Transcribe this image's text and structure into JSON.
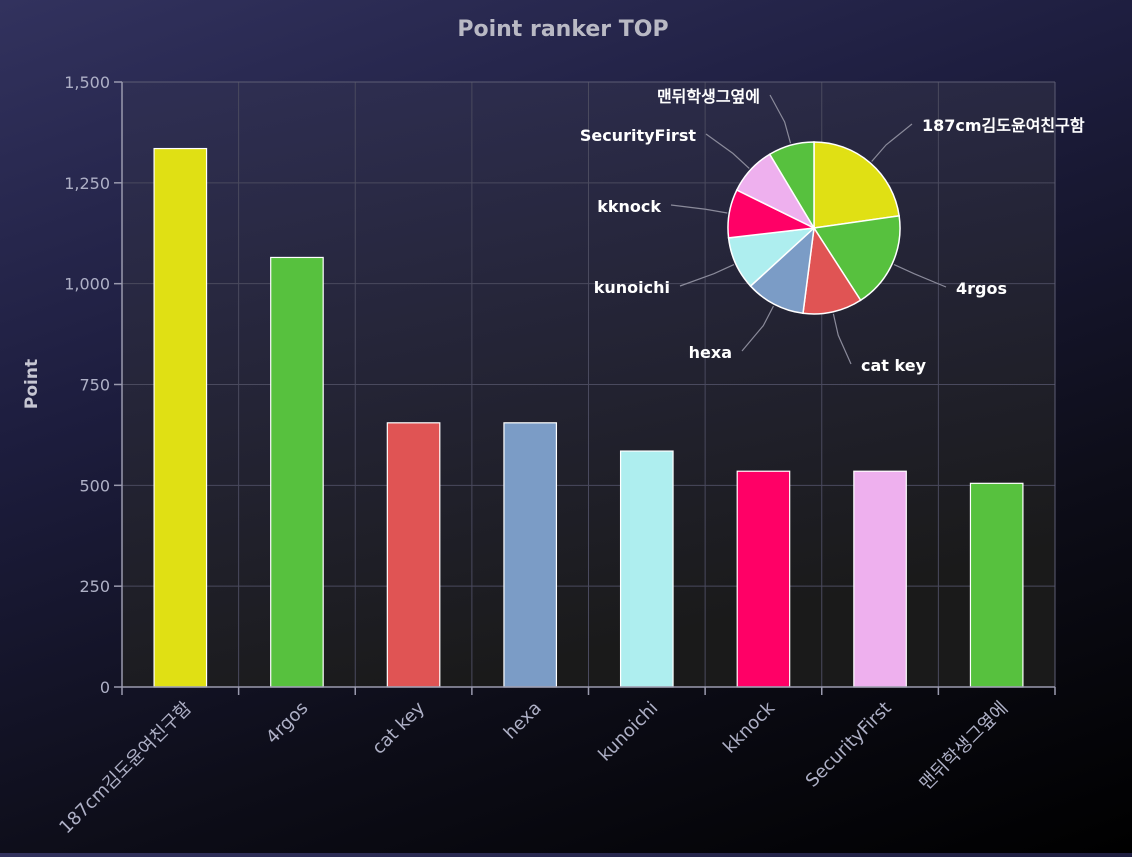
{
  "chart_data": {
    "type": "bar",
    "title": "Point ranker TOP",
    "xlabel": "",
    "ylabel": "Point",
    "ylim": [
      0,
      1500
    ],
    "yticks": [
      0,
      250,
      500,
      750,
      1000,
      1250,
      1500
    ],
    "ytick_labels": [
      "0",
      "250",
      "500",
      "750",
      "1,000",
      "1,250",
      "1,500"
    ],
    "grid": true,
    "categories": [
      "187cm김도윤여친구함",
      "4rgos",
      "cat key",
      "hexa",
      "kunoichi",
      "kknock",
      "SecurityFirst",
      "맨뒤학생그옆에"
    ],
    "values": [
      1335,
      1065,
      655,
      655,
      585,
      535,
      535,
      505
    ],
    "colors": [
      "#e0e014",
      "#57c13e",
      "#e05454",
      "#7b9cc6",
      "#aeeeef",
      "#ff0066",
      "#eeb0ee",
      "#57c13e"
    ],
    "inset": {
      "type": "pie",
      "labels": [
        "187cm김도윤여친구함",
        "4rgos",
        "cat key",
        "hexa",
        "kunoichi",
        "kknock",
        "SecurityFirst",
        "맨뒤학생그옆에"
      ],
      "values": [
        1335,
        1065,
        655,
        655,
        585,
        535,
        535,
        505
      ],
      "colors": [
        "#e0e014",
        "#57c13e",
        "#e05454",
        "#7b9cc6",
        "#aeeeef",
        "#ff0066",
        "#eeb0ee",
        "#57c13e"
      ]
    }
  }
}
